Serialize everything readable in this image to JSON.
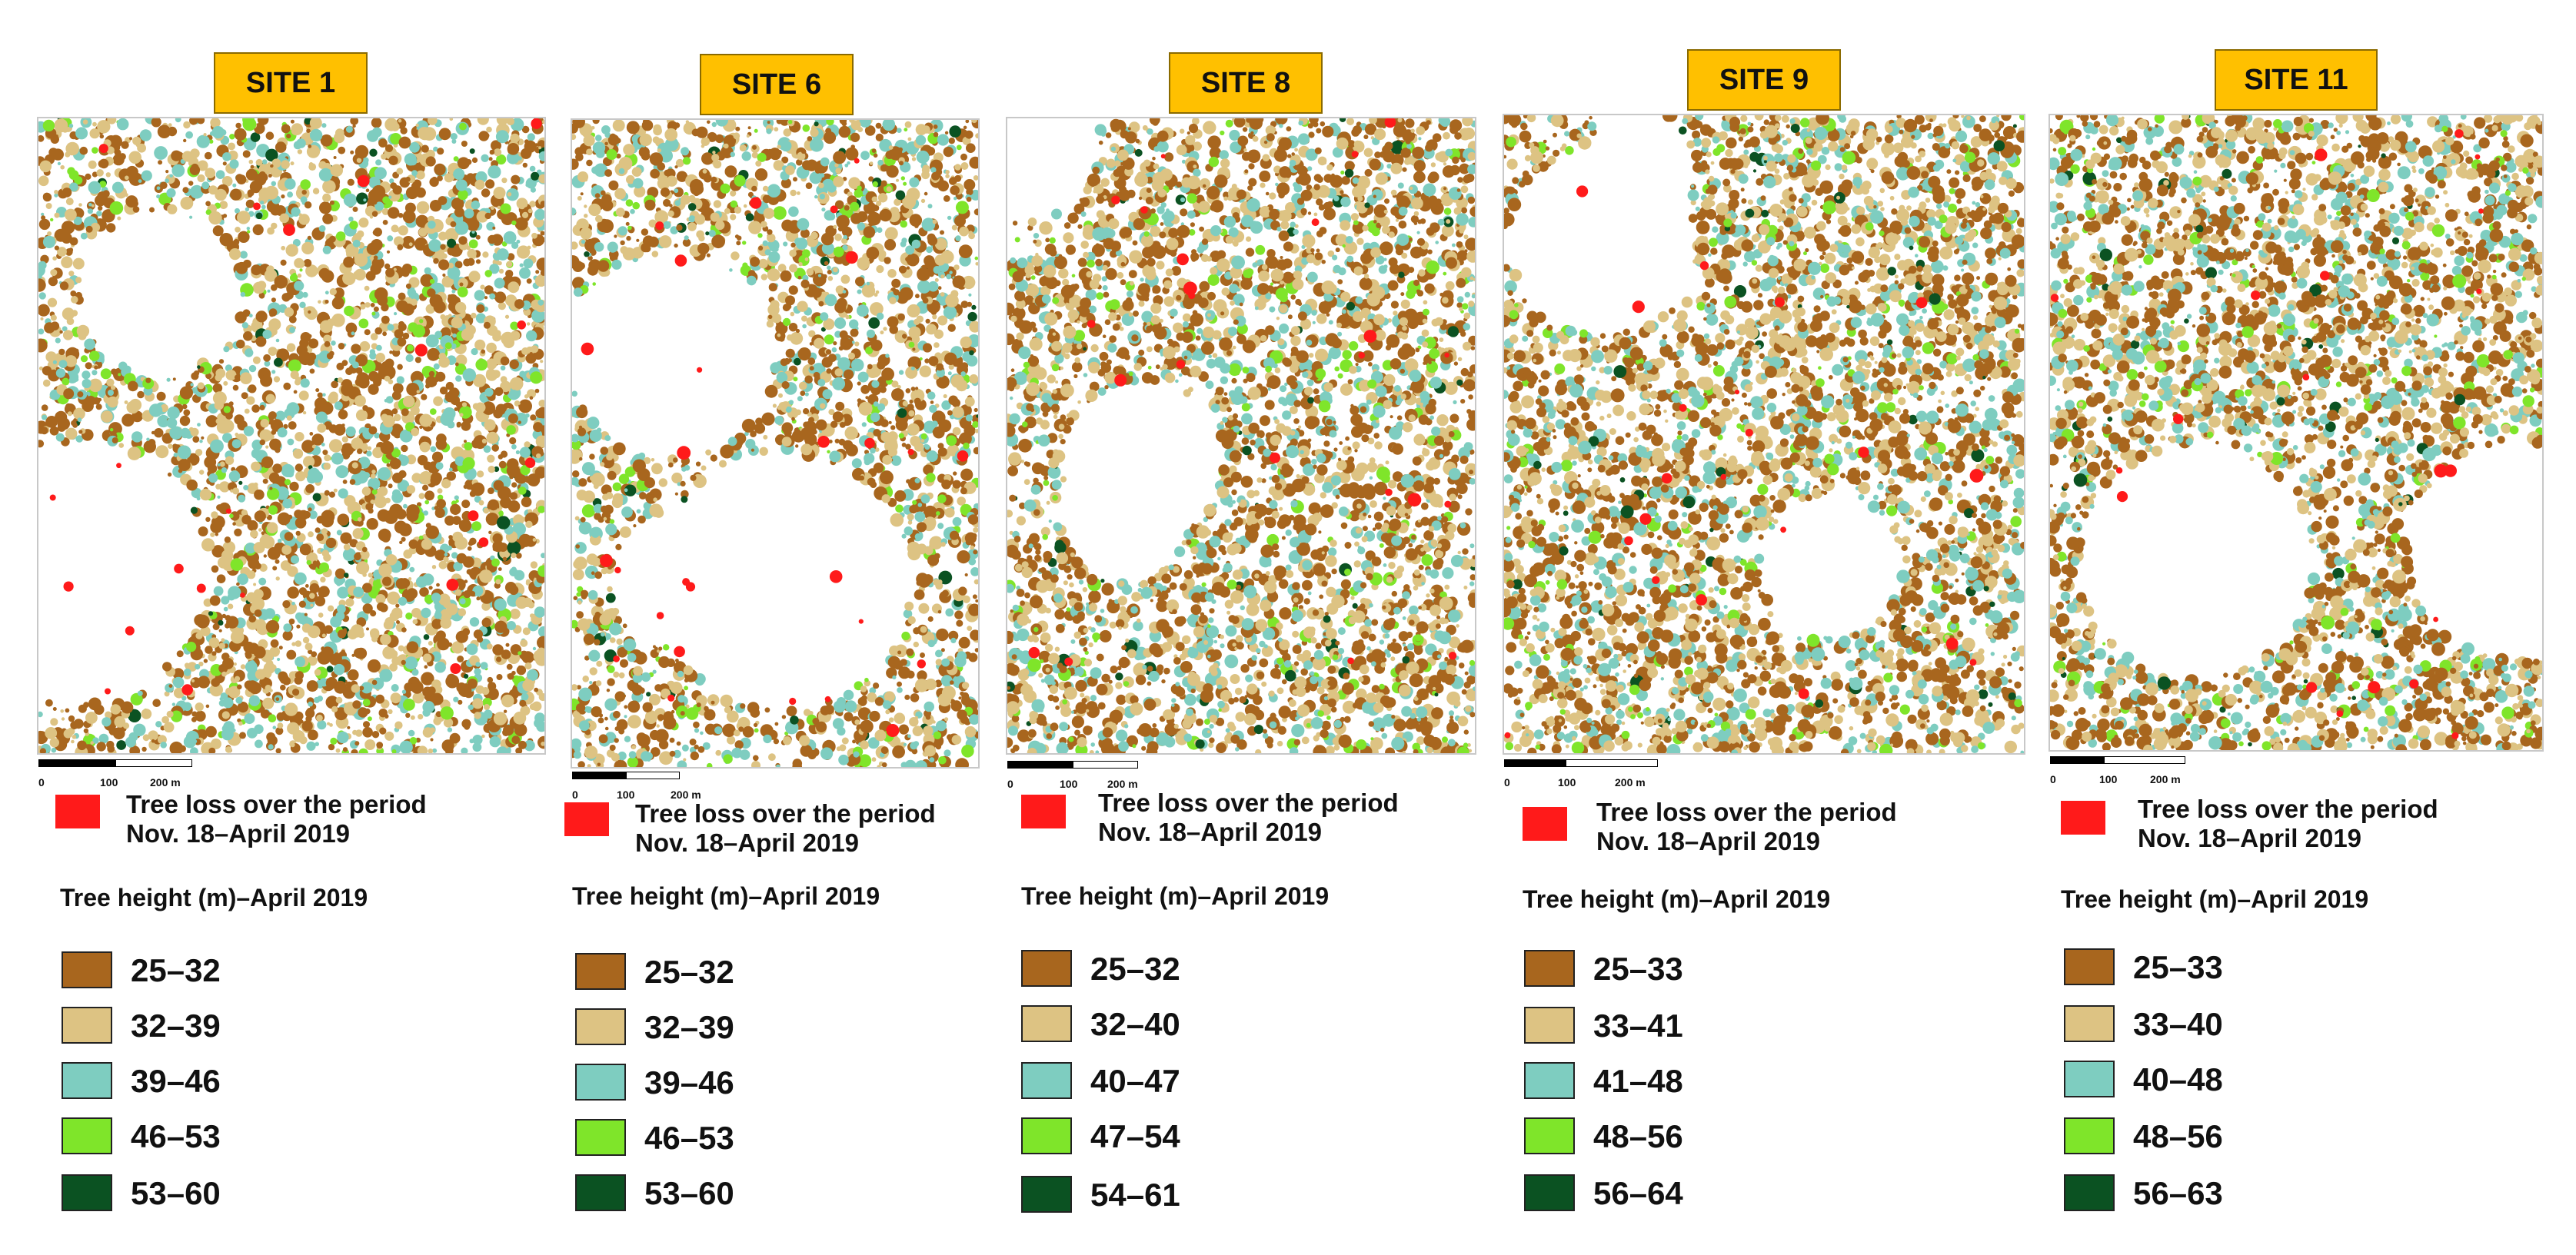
{
  "colors": {
    "loss": "#FF1A1A",
    "site_label_bg": "#FFC000",
    "classes": [
      "#A8661E",
      "#DDC383",
      "#7ECDC0",
      "#7FE52A",
      "#0B5222"
    ]
  },
  "sites": [
    {
      "label": "SITE 1",
      "scale_ticks": [
        "0",
        "100",
        "200 m"
      ],
      "loss_line1": "Tree loss over the period",
      "loss_line2": "Nov. 18–April 2019",
      "legend_title": "Tree height (m)–April 2019",
      "classes": [
        "25–32",
        "32–39",
        "39–46",
        "46–53",
        "53–60"
      ]
    },
    {
      "label": "SITE 6",
      "scale_ticks": [
        "0",
        "100",
        "200 m"
      ],
      "loss_line1": "Tree loss over the period",
      "loss_line2": "Nov. 18–April 2019",
      "legend_title": "Tree height (m)–April 2019",
      "classes": [
        "25–32",
        "32–39",
        "39–46",
        "46–53",
        "53–60"
      ]
    },
    {
      "label": "SITE 8",
      "scale_ticks": [
        "0",
        "100",
        "200 m"
      ],
      "loss_line1": "Tree loss over the period",
      "loss_line2": "Nov. 18–April 2019",
      "legend_title": "Tree height (m)–April 2019",
      "classes": [
        "25–32",
        "32–40",
        "40–47",
        "47–54",
        "54–61"
      ]
    },
    {
      "label": "SITE 9",
      "scale_ticks": [
        "0",
        "100",
        "200 m"
      ],
      "loss_line1": "Tree loss over the period",
      "loss_line2": "Nov. 18–April 2019",
      "legend_title": "Tree height (m)–April 2019",
      "classes": [
        "25–33",
        "33–41",
        "41–48",
        "48–56",
        "56–64"
      ]
    },
    {
      "label": "SITE 11",
      "scale_ticks": [
        "0",
        "100",
        "200 m"
      ],
      "loss_line1": "Tree loss over the period",
      "loss_line2": "Nov. 18–April 2019",
      "legend_title": "Tree height (m)–April 2019",
      "classes": [
        "25–33",
        "33–40",
        "40–48",
        "48–56",
        "56–63"
      ]
    }
  ]
}
